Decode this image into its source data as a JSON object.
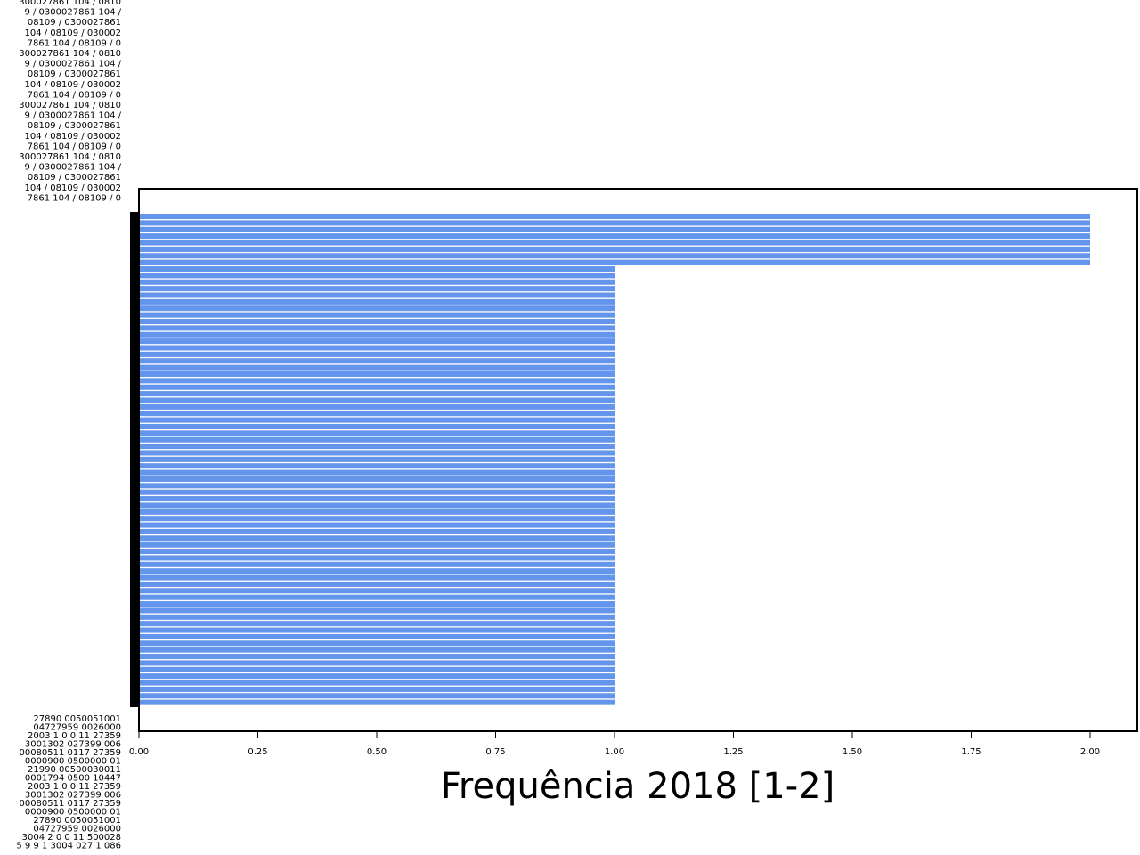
{
  "chart_data": {
    "type": "bar",
    "orientation": "horizontal",
    "xlabel": "Frequência 2018 [1-2]",
    "ylabel": "",
    "title": "",
    "xlim": [
      0,
      2.1
    ],
    "x_ticks": [
      "0.00",
      "0.25",
      "0.50",
      "0.75",
      "1.00",
      "1.25",
      "1.50",
      "1.75",
      "2.00"
    ],
    "bar_color": "#6495ED",
    "overflow_label_lines": [
      "300027861 104 / 0810",
      "9 / 0300027861 104 /",
      "08109 / 0300027861",
      "104 / 08109 / 030002",
      "7861 104 / 08109 / 0",
      "300027861 104 / 0810",
      "9 / 0300027861 104 /",
      "08109 / 0300027861",
      "104 / 08109 / 030002",
      "7861 104 / 08109 / 0",
      "300027861 104 / 0810",
      "9 / 0300027861 104 /",
      "08109 / 0300027861",
      "104 / 08109 / 030002",
      "7861 104 / 08109 / 0",
      "300027861 104 / 0810",
      "9 / 0300027861 104 /",
      "08109 / 0300027861",
      "104 / 08109 / 030002",
      "7861 104 / 08109 / 0"
    ],
    "bottom_label_lines": [
      "27890 0050051001",
      "04727959 0026000",
      "2003 1 0 0 11 27359",
      "3001302 027399 006",
      "00080511 0117 27359",
      "0000900 0500000 01",
      "21990 00500030011",
      "0001794 0500 10447",
      "2003 1 0 0 11 27359",
      "3001302 027399 006",
      "00080511 0117 27359",
      "0000900 0500000 01",
      "27890 0050051001",
      "04727959 0026000",
      "3004 2 0 0 11 500028",
      "5 9 9 1 3004 027 1 086"
    ],
    "values": [
      2,
      2,
      2,
      2,
      2,
      2,
      2,
      2,
      1,
      1,
      1,
      1,
      1,
      1,
      1,
      1,
      1,
      1,
      1,
      1,
      1,
      1,
      1,
      1,
      1,
      1,
      1,
      1,
      1,
      1,
      1,
      1,
      1,
      1,
      1,
      1,
      1,
      1,
      1,
      1,
      1,
      1,
      1,
      1,
      1,
      1,
      1,
      1,
      1,
      1,
      1,
      1,
      1,
      1,
      1,
      1,
      1,
      1,
      1,
      1,
      1,
      1,
      1,
      1,
      1,
      1,
      1,
      1,
      1,
      1,
      1,
      1,
      1,
      1,
      1
    ]
  }
}
